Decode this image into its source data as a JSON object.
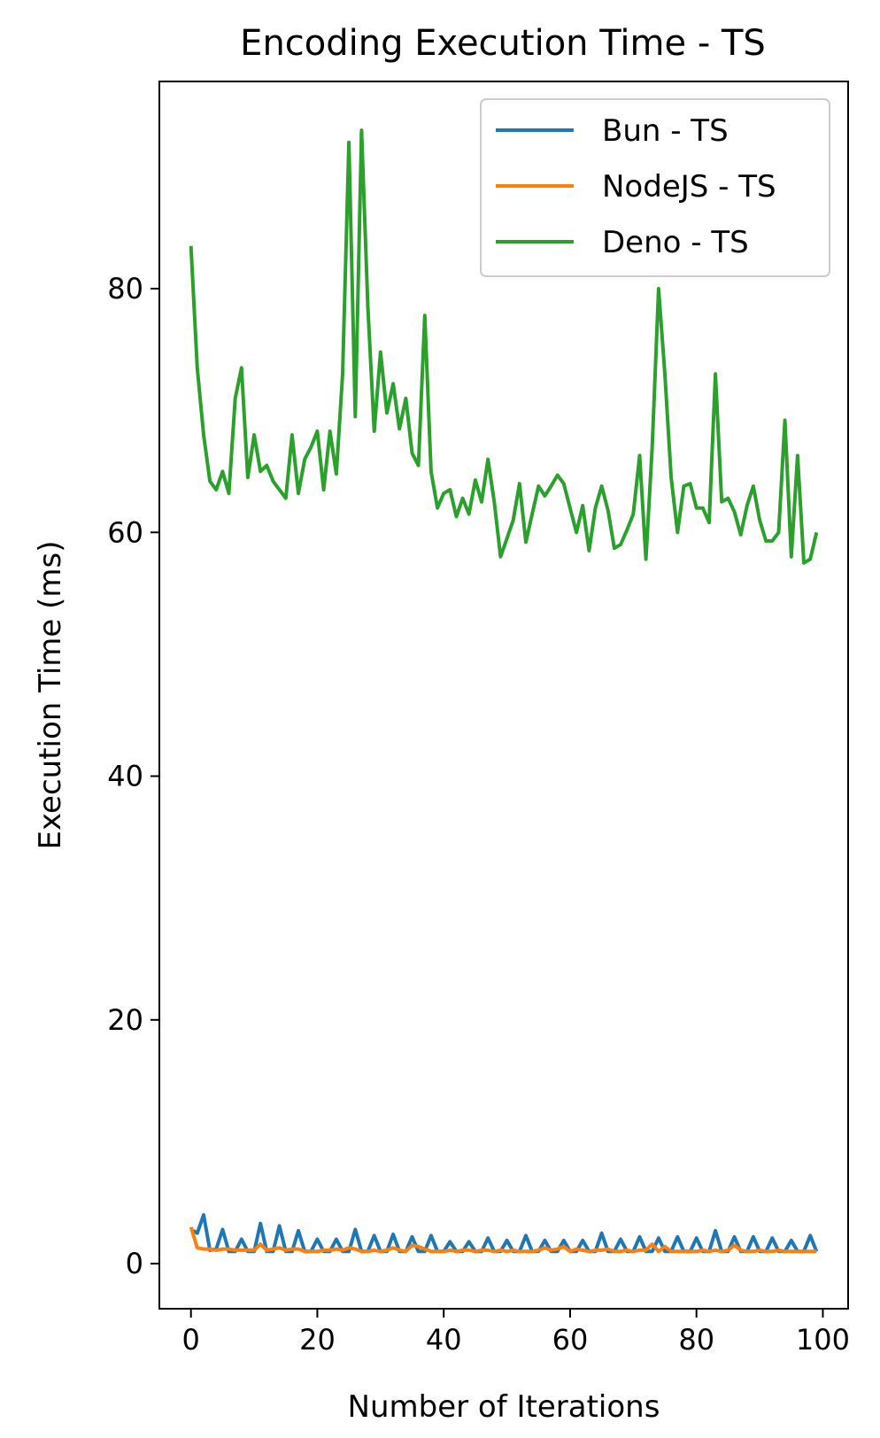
{
  "chart_data": {
    "type": "line",
    "title": "Encoding Execution Time - TS",
    "xlabel": "Number of Iterations",
    "ylabel": "Execution Time (ms)",
    "xlim": [
      -5,
      104
    ],
    "ylim": [
      -3.7,
      97
    ],
    "xticks": [
      0,
      20,
      40,
      60,
      80,
      100
    ],
    "yticks": [
      0,
      20,
      40,
      60,
      80
    ],
    "grid": false,
    "legend_position": "top-right",
    "series": [
      {
        "name": "Bun - TS",
        "color": "#1f77b4",
        "values": [
          2.8,
          2.5,
          4.0,
          1.1,
          1.2,
          2.8,
          1.0,
          1.0,
          2.0,
          1.0,
          1.0,
          3.3,
          1.0,
          1.0,
          3.1,
          1.0,
          1.0,
          2.7,
          1.0,
          1.0,
          2.0,
          1.0,
          1.0,
          2.0,
          1.0,
          1.0,
          2.8,
          1.0,
          1.0,
          2.3,
          1.0,
          1.0,
          2.4,
          1.0,
          1.0,
          2.2,
          1.0,
          1.0,
          2.3,
          1.0,
          1.0,
          1.8,
          1.0,
          1.0,
          1.8,
          1.0,
          1.0,
          2.1,
          1.0,
          1.0,
          1.9,
          1.0,
          1.0,
          2.3,
          1.0,
          1.0,
          1.9,
          1.0,
          1.0,
          1.9,
          1.0,
          1.0,
          1.9,
          1.0,
          1.0,
          2.5,
          1.0,
          1.0,
          2.0,
          1.0,
          1.0,
          2.2,
          1.0,
          1.0,
          2.1,
          1.0,
          1.0,
          2.2,
          1.0,
          1.0,
          2.1,
          1.0,
          1.0,
          2.7,
          1.0,
          1.0,
          2.2,
          1.0,
          1.0,
          2.2,
          1.0,
          1.0,
          2.1,
          1.0,
          1.0,
          1.9,
          1.0,
          1.0,
          2.3,
          1.0
        ]
      },
      {
        "name": "NodeJS - TS",
        "color": "#ff7f0e",
        "values": [
          3.0,
          1.3,
          1.2,
          1.2,
          1.1,
          1.2,
          1.2,
          1.1,
          1.1,
          1.1,
          1.1,
          1.6,
          1.1,
          1.2,
          1.3,
          1.1,
          1.2,
          1.2,
          1.0,
          1.0,
          1.0,
          1.1,
          1.1,
          1.2,
          1.1,
          1.3,
          1.2,
          1.0,
          1.0,
          1.1,
          1.0,
          1.1,
          1.3,
          1.1,
          1.0,
          1.5,
          1.4,
          1.2,
          1.0,
          1.0,
          1.0,
          1.1,
          1.0,
          1.1,
          1.1,
          1.0,
          1.1,
          1.1,
          1.0,
          1.1,
          1.0,
          1.1,
          1.0,
          1.0,
          1.0,
          1.1,
          1.3,
          1.1,
          1.2,
          1.4,
          1.0,
          1.2,
          1.1,
          1.0,
          1.1,
          1.1,
          1.2,
          1.0,
          1.0,
          1.1,
          1.0,
          1.1,
          1.1,
          1.6,
          1.0,
          1.4,
          1.0,
          1.0,
          1.0,
          1.0,
          1.0,
          1.1,
          1.0,
          1.1,
          1.0,
          1.1,
          1.5,
          1.1,
          1.0,
          1.0,
          1.1,
          1.0,
          1.0,
          1.1,
          1.0,
          1.0,
          1.0,
          1.0,
          1.0,
          1.0
        ]
      },
      {
        "name": "Deno - TS",
        "color": "#2ca02c",
        "values": [
          83.5,
          73.5,
          68.0,
          64.2,
          63.5,
          65.0,
          63.2,
          71.0,
          73.5,
          64.5,
          68.0,
          65.0,
          65.5,
          64.2,
          63.5,
          62.8,
          68.0,
          63.2,
          66.0,
          67.0,
          68.3,
          63.5,
          68.3,
          64.8,
          73.0,
          92.0,
          69.5,
          93.0,
          78.5,
          68.3,
          74.8,
          69.8,
          72.2,
          68.5,
          71.0,
          66.5,
          65.5,
          77.8,
          65.0,
          62.0,
          63.2,
          63.5,
          61.3,
          62.8,
          61.5,
          64.3,
          62.5,
          66.0,
          62.5,
          58.0,
          59.5,
          61.0,
          64.0,
          59.2,
          61.5,
          63.8,
          63.0,
          63.8,
          64.7,
          64.0,
          62.0,
          60.0,
          62.2,
          58.5,
          62.0,
          63.8,
          61.8,
          58.7,
          59.0,
          60.2,
          61.5,
          66.3,
          57.8,
          67.0,
          80.0,
          73.0,
          64.5,
          60.0,
          63.8,
          64.0,
          62.0,
          62.0,
          60.8,
          73.0,
          62.5,
          62.8,
          61.7,
          59.8,
          62.2,
          63.8,
          61.0,
          59.3,
          59.3,
          60.0,
          69.2,
          58.0,
          66.3,
          57.5,
          57.8,
          60.0
        ]
      }
    ]
  }
}
